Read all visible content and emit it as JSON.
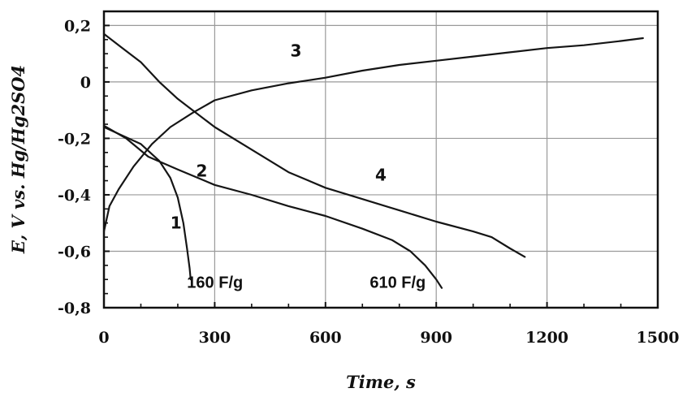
{
  "chart_data": {
    "type": "line",
    "title": "",
    "xlabel": "Time, s",
    "ylabel": "E, V vs. Hg/Hg2SO4",
    "xlim": [
      0,
      1500
    ],
    "ylim": [
      -0.8,
      0.25
    ],
    "grid": true,
    "legend": "none",
    "x_ticks": [
      0,
      300,
      600,
      900,
      1200,
      1500
    ],
    "x_tick_labels": [
      "0",
      "300",
      "600",
      "900",
      "1200",
      "1500"
    ],
    "y_ticks": [
      0.2,
      0,
      -0.2,
      -0.4,
      -0.6,
      -0.8
    ],
    "y_tick_labels": [
      "0,2",
      "0",
      "-0,2",
      "-0,4",
      "-0,6",
      "-0,8"
    ],
    "series": [
      {
        "name": "1",
        "points": [
          [
            0,
            -0.16
          ],
          [
            50,
            -0.19
          ],
          [
            100,
            -0.22
          ],
          [
            150,
            -0.28
          ],
          [
            180,
            -0.34
          ],
          [
            200,
            -0.41
          ],
          [
            215,
            -0.5
          ],
          [
            225,
            -0.59
          ],
          [
            232,
            -0.66
          ],
          [
            235,
            -0.7
          ]
        ]
      },
      {
        "name": "2",
        "points": [
          [
            0,
            -0.155
          ],
          [
            60,
            -0.2
          ],
          [
            120,
            -0.265
          ],
          [
            200,
            -0.31
          ],
          [
            300,
            -0.365
          ],
          [
            400,
            -0.4
          ],
          [
            500,
            -0.44
          ],
          [
            600,
            -0.475
          ],
          [
            700,
            -0.52
          ],
          [
            780,
            -0.56
          ],
          [
            830,
            -0.6
          ],
          [
            870,
            -0.65
          ],
          [
            900,
            -0.7
          ],
          [
            915,
            -0.73
          ]
        ]
      },
      {
        "name": "3",
        "points": [
          [
            0,
            -0.53
          ],
          [
            15,
            -0.44
          ],
          [
            40,
            -0.38
          ],
          [
            80,
            -0.3
          ],
          [
            130,
            -0.22
          ],
          [
            180,
            -0.16
          ],
          [
            240,
            -0.11
          ],
          [
            300,
            -0.065
          ],
          [
            400,
            -0.03
          ],
          [
            500,
            -0.005
          ],
          [
            600,
            0.015
          ],
          [
            700,
            0.04
          ],
          [
            800,
            0.06
          ],
          [
            900,
            0.075
          ],
          [
            1000,
            0.09
          ],
          [
            1100,
            0.105
          ],
          [
            1200,
            0.12
          ],
          [
            1300,
            0.13
          ],
          [
            1400,
            0.145
          ],
          [
            1460,
            0.155
          ]
        ]
      },
      {
        "name": "4",
        "points": [
          [
            0,
            0.17
          ],
          [
            50,
            0.12
          ],
          [
            100,
            0.07
          ],
          [
            150,
            0.0
          ],
          [
            200,
            -0.06
          ],
          [
            300,
            -0.16
          ],
          [
            400,
            -0.24
          ],
          [
            500,
            -0.32
          ],
          [
            600,
            -0.375
          ],
          [
            700,
            -0.415
          ],
          [
            800,
            -0.455
          ],
          [
            900,
            -0.495
          ],
          [
            1000,
            -0.53
          ],
          [
            1050,
            -0.55
          ],
          [
            1100,
            -0.59
          ],
          [
            1140,
            -0.62
          ]
        ]
      }
    ],
    "curve_labels": [
      {
        "text": "1",
        "x": 195,
        "y": -0.52
      },
      {
        "text": "2",
        "x": 265,
        "y": -0.335
      },
      {
        "text": "3",
        "x": 520,
        "y": 0.09
      },
      {
        "text": "4",
        "x": 750,
        "y": -0.35
      }
    ],
    "annotations": [
      {
        "text": "160 F/g",
        "x": 225,
        "y": -0.73
      },
      {
        "text": "610 F/g",
        "x": 720,
        "y": -0.73
      }
    ]
  }
}
